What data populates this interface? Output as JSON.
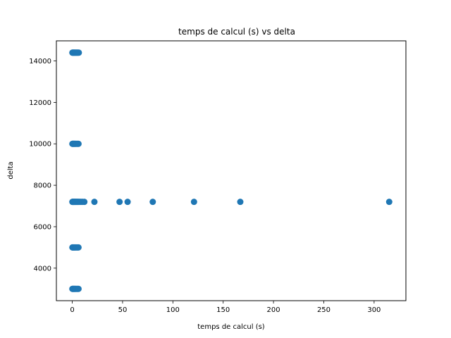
{
  "chart_data": {
    "type": "scatter",
    "title": "temps de calcul (s)   vs   delta",
    "xlabel": "temps de calcul (s)",
    "ylabel": "delta",
    "xlim": [
      -15.8,
      331.6
    ],
    "ylim": [
      2430,
      14970
    ],
    "xticks": [
      0,
      50,
      100,
      150,
      200,
      250,
      300
    ],
    "xtick_labels": [
      "0",
      "50",
      "100",
      "150",
      "200",
      "250",
      "300"
    ],
    "yticks": [
      4000,
      6000,
      8000,
      10000,
      12000,
      14000
    ],
    "ytick_labels": [
      "4000",
      "6000",
      "8000",
      "10000",
      "12000",
      "14000"
    ],
    "grid": false,
    "color": "#1f77b4",
    "points": [
      [
        0.1,
        14400
      ],
      [
        0.5,
        14400
      ],
      [
        0.9,
        14400
      ],
      [
        1.3,
        14400
      ],
      [
        1.8,
        14400
      ],
      [
        2.3,
        14400
      ],
      [
        2.8,
        14400
      ],
      [
        3.3,
        14400
      ],
      [
        3.9,
        14400
      ],
      [
        4.5,
        14400
      ],
      [
        5.1,
        14400
      ],
      [
        5.8,
        14400
      ],
      [
        6.5,
        14400
      ],
      [
        0.1,
        10000
      ],
      [
        0.5,
        10000
      ],
      [
        0.9,
        10000
      ],
      [
        1.4,
        10000
      ],
      [
        1.9,
        10000
      ],
      [
        2.5,
        10000
      ],
      [
        3.1,
        10000
      ],
      [
        3.8,
        10000
      ],
      [
        4.6,
        10000
      ],
      [
        5.4,
        10000
      ],
      [
        6.2,
        10000
      ],
      [
        0.1,
        7200
      ],
      [
        0.4,
        7200
      ],
      [
        0.8,
        7200
      ],
      [
        1.2,
        7200
      ],
      [
        1.6,
        7200
      ],
      [
        2.1,
        7200
      ],
      [
        2.6,
        7200
      ],
      [
        3.1,
        7200
      ],
      [
        3.7,
        7200
      ],
      [
        4.3,
        7200
      ],
      [
        5.0,
        7200
      ],
      [
        5.7,
        7200
      ],
      [
        6.5,
        7200
      ],
      [
        7.5,
        7200
      ],
      [
        8.7,
        7200
      ],
      [
        10.2,
        7200
      ],
      [
        12.0,
        7200
      ],
      [
        22,
        7200
      ],
      [
        47,
        7200
      ],
      [
        55,
        7200
      ],
      [
        80,
        7200
      ],
      [
        121,
        7200
      ],
      [
        167,
        7200
      ],
      [
        315,
        7200
      ],
      [
        0.1,
        5000
      ],
      [
        0.5,
        5000
      ],
      [
        0.9,
        5000
      ],
      [
        1.4,
        5000
      ],
      [
        1.9,
        5000
      ],
      [
        2.5,
        5000
      ],
      [
        3.1,
        5000
      ],
      [
        3.8,
        5000
      ],
      [
        4.6,
        5000
      ],
      [
        5.4,
        5000
      ],
      [
        6.2,
        5000
      ],
      [
        0.1,
        3000
      ],
      [
        0.5,
        3000
      ],
      [
        0.9,
        3000
      ],
      [
        1.4,
        3000
      ],
      [
        1.9,
        3000
      ],
      [
        2.5,
        3000
      ],
      [
        3.1,
        3000
      ],
      [
        3.8,
        3000
      ],
      [
        4.6,
        3000
      ],
      [
        5.4,
        3000
      ],
      [
        6.2,
        3000
      ]
    ]
  }
}
